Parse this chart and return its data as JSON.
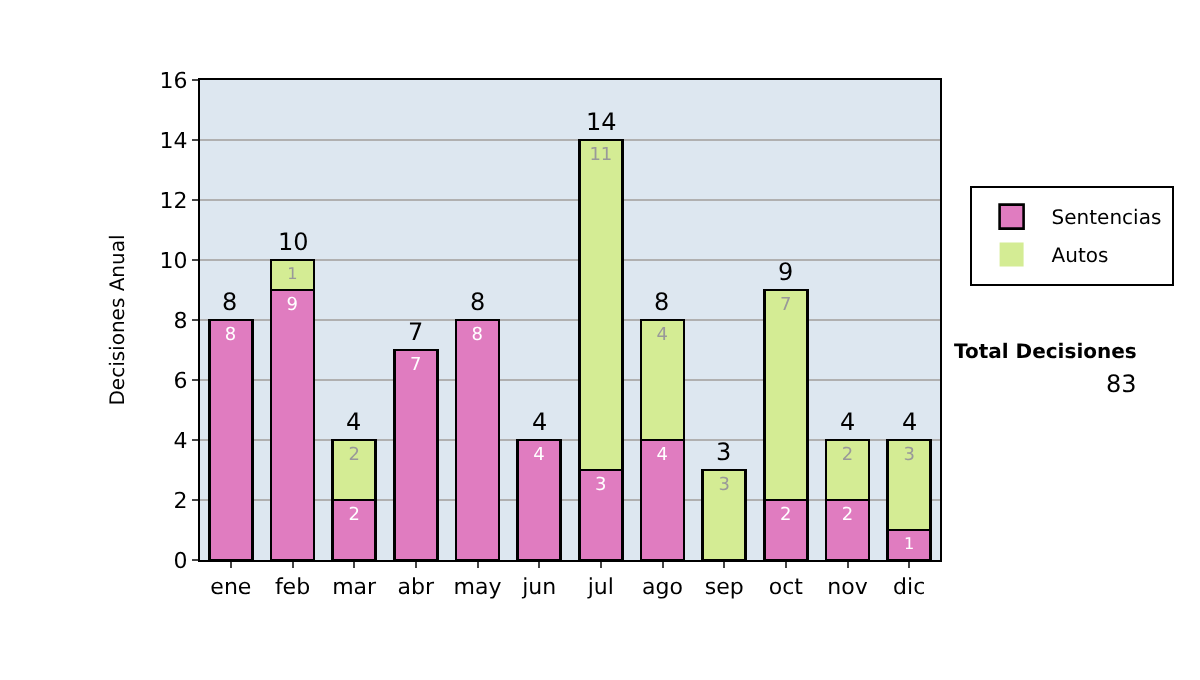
{
  "chart_data": {
    "type": "bar",
    "stacked": true,
    "ylabel": "Decisiones Anual",
    "categories": [
      "ene",
      "feb",
      "mar",
      "abr",
      "may",
      "jun",
      "jul",
      "ago",
      "sep",
      "oct",
      "nov",
      "dic"
    ],
    "series": [
      {
        "name": "Sentencias",
        "color": "#e07cc0",
        "values": [
          8,
          9,
          2,
          7,
          8,
          4,
          3,
          4,
          0,
          2,
          2,
          1
        ],
        "value_labels": [
          "8",
          "9",
          "2",
          "7",
          "8",
          "4",
          "3",
          "4",
          null,
          "2",
          "2",
          "1"
        ]
      },
      {
        "name": "Autos",
        "color": "#d4ec94",
        "values": [
          0,
          1,
          2,
          0,
          0,
          0,
          11,
          4,
          3,
          7,
          2,
          3
        ],
        "value_labels": [
          null,
          "1",
          "2",
          null,
          null,
          null,
          "11",
          "4",
          "3",
          "7",
          "2",
          "3"
        ]
      }
    ],
    "totals": [
      "8",
      "10",
      "4",
      "7",
      "8",
      "4",
      "14",
      "8",
      "3",
      "9",
      "4",
      "4"
    ],
    "ylim": [
      0,
      16
    ],
    "yticks": [
      0,
      2,
      4,
      6,
      8,
      10,
      12,
      14,
      16
    ],
    "grid": "y",
    "legend": "right",
    "annotations": [
      "Total Decisiones",
      "83"
    ]
  }
}
